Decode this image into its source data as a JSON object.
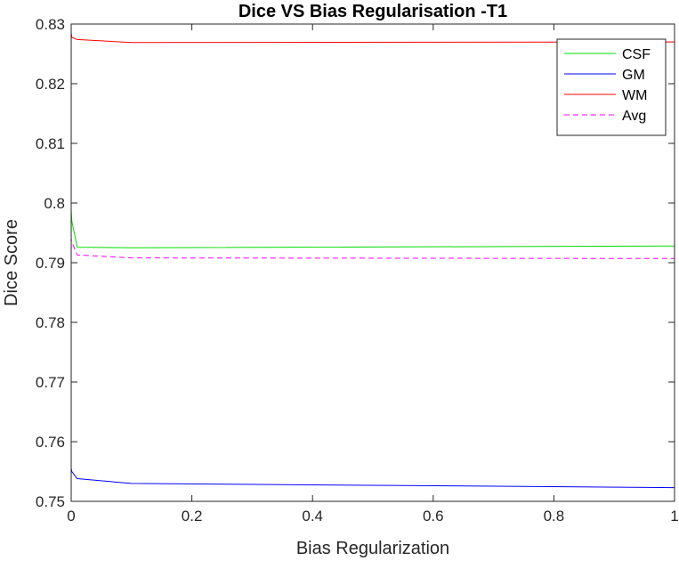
{
  "chart_data": {
    "type": "line",
    "title": "Dice VS Bias Regularisation -T1",
    "xlabel": "Bias Regularization",
    "ylabel": "Dice Score",
    "xlim": [
      0,
      1
    ],
    "ylim": [
      0.75,
      0.83
    ],
    "xticks": [
      0,
      0.2,
      0.4,
      0.6,
      0.8,
      1
    ],
    "xtick_labels": [
      "0",
      "0.2",
      "0.4",
      "0.6",
      "0.8",
      "1"
    ],
    "yticks": [
      0.75,
      0.76,
      0.77,
      0.78,
      0.79,
      0.8,
      0.81,
      0.82,
      0.83
    ],
    "ytick_labels": [
      "0.75",
      "0.76",
      "0.77",
      "0.78",
      "0.79",
      "0.8",
      "0.81",
      "0.82",
      "0.83"
    ],
    "grid": false,
    "legend_position": "top-right",
    "x": [
      0,
      0.0001,
      0.001,
      0.01,
      0.1,
      1
    ],
    "series": [
      {
        "name": "CSF",
        "color": "#00dd00",
        "dash": "solid",
        "values": [
          0.7924,
          0.7987,
          0.797,
          0.7926,
          0.7925,
          0.7928
        ]
      },
      {
        "name": "GM",
        "color": "#0000ff",
        "dash": "solid",
        "values": [
          0.7535,
          0.7555,
          0.755,
          0.7538,
          0.753,
          0.7523
        ]
      },
      {
        "name": "WM",
        "color": "#ff0000",
        "dash": "solid",
        "values": [
          0.8255,
          0.8285,
          0.8278,
          0.8274,
          0.8269,
          0.827
        ]
      },
      {
        "name": "Avg",
        "color": "#ff00ff",
        "dash": "dashed",
        "values": [
          0.7905,
          0.794,
          0.7935,
          0.7913,
          0.7908,
          0.7907
        ]
      }
    ]
  }
}
